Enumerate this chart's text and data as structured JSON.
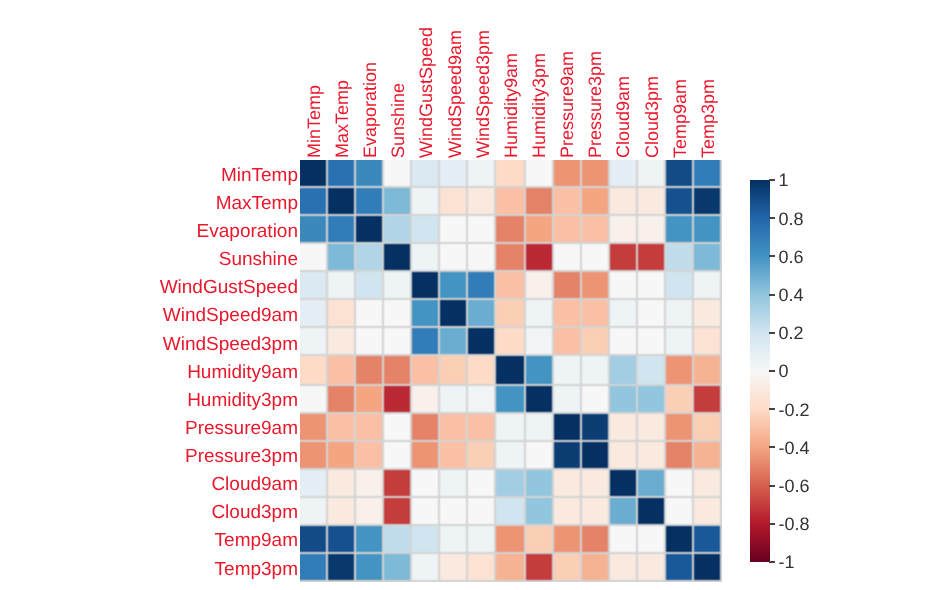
{
  "chart_data": {
    "type": "heatmap",
    "categories": [
      "MinTemp",
      "MaxTemp",
      "Evaporation",
      "Sunshine",
      "WindGustSpeed",
      "WindSpeed9am",
      "WindSpeed3pm",
      "Humidity9am",
      "Humidity3pm",
      "Pressure9am",
      "Pressure3pm",
      "Cloud9am",
      "Cloud3pm",
      "Temp9am",
      "Temp3pm"
    ],
    "y_categories": [
      "MinTemp",
      "MaxTemp",
      "Evaporation",
      "Sunshine",
      "WindGustSpeed",
      "WindSpeed9am",
      "WindSpeed3pm",
      "Humidity9am",
      "Humidity3pm",
      "Pressure9am",
      "Pressure3pm",
      "Cloud9am",
      "Cloud3pm",
      "Temp9am",
      "Temp3pm"
    ],
    "cells": [
      [
        1,
        0.75,
        0.65,
        0,
        0.15,
        0.1,
        0.05,
        -0.2,
        0,
        -0.45,
        -0.45,
        0.1,
        0.05,
        0.9,
        0.7
      ],
      [
        0.75,
        1,
        0.7,
        0.45,
        0.05,
        -0.15,
        -0.1,
        -0.3,
        -0.5,
        -0.3,
        -0.4,
        -0.1,
        -0.1,
        0.88,
        0.97
      ],
      [
        0.65,
        0.7,
        1,
        0.3,
        0.2,
        0,
        0,
        -0.5,
        -0.4,
        -0.3,
        -0.3,
        -0.05,
        -0.05,
        0.6,
        0.6
      ],
      [
        0,
        0.45,
        0.3,
        1,
        0.05,
        0,
        0,
        -0.5,
        -0.75,
        0,
        0,
        -0.7,
        -0.7,
        0.25,
        0.45
      ],
      [
        0.15,
        0.05,
        0.2,
        0.05,
        1,
        0.6,
        0.7,
        -0.3,
        -0.05,
        -0.5,
        -0.45,
        0,
        0,
        0.2,
        0.05
      ],
      [
        0.1,
        -0.15,
        0,
        0,
        0.6,
        1,
        0.5,
        -0.25,
        0.05,
        -0.3,
        -0.3,
        0.05,
        0,
        0.05,
        -0.1
      ],
      [
        0.05,
        -0.1,
        0,
        0,
        0.7,
        0.5,
        1,
        -0.2,
        0.03,
        -0.3,
        -0.25,
        0,
        0,
        0.05,
        -0.15
      ],
      [
        -0.2,
        -0.3,
        -0.5,
        -0.5,
        -0.3,
        -0.25,
        -0.2,
        1,
        0.6,
        0.05,
        0.05,
        0.35,
        0.2,
        -0.45,
        -0.35
      ],
      [
        0,
        -0.5,
        -0.4,
        -0.75,
        -0.05,
        0.05,
        0.03,
        0.6,
        1,
        0.05,
        0,
        0.4,
        0.4,
        -0.25,
        -0.7
      ],
      [
        -0.45,
        -0.3,
        -0.3,
        0,
        -0.5,
        -0.3,
        -0.3,
        0.05,
        0.05,
        1,
        0.95,
        -0.1,
        -0.1,
        -0.45,
        -0.25
      ],
      [
        -0.45,
        -0.4,
        -0.3,
        0,
        -0.45,
        -0.3,
        -0.25,
        0.05,
        0,
        0.95,
        1,
        -0.1,
        -0.1,
        -0.5,
        -0.35
      ],
      [
        0.1,
        -0.1,
        -0.05,
        -0.7,
        0,
        0.05,
        0,
        0.35,
        0.4,
        -0.1,
        -0.1,
        1,
        0.5,
        0,
        -0.1
      ],
      [
        0.05,
        -0.1,
        -0.05,
        -0.7,
        0,
        0,
        0,
        0.2,
        0.4,
        -0.1,
        -0.1,
        0.5,
        1,
        0,
        -0.1
      ],
      [
        0.9,
        0.88,
        0.6,
        0.25,
        0.2,
        0.05,
        0.05,
        -0.45,
        -0.25,
        -0.45,
        -0.5,
        0,
        0,
        1,
        0.85
      ],
      [
        0.7,
        0.97,
        0.6,
        0.45,
        0.05,
        -0.1,
        -0.15,
        -0.35,
        -0.7,
        -0.25,
        -0.35,
        -0.1,
        -0.1,
        0.85,
        1
      ]
    ],
    "clim": [
      -1,
      1
    ],
    "cticks": [
      -1,
      -0.8,
      -0.6,
      -0.4,
      -0.2,
      0,
      0.2,
      0.4,
      0.6,
      0.8,
      1
    ]
  }
}
